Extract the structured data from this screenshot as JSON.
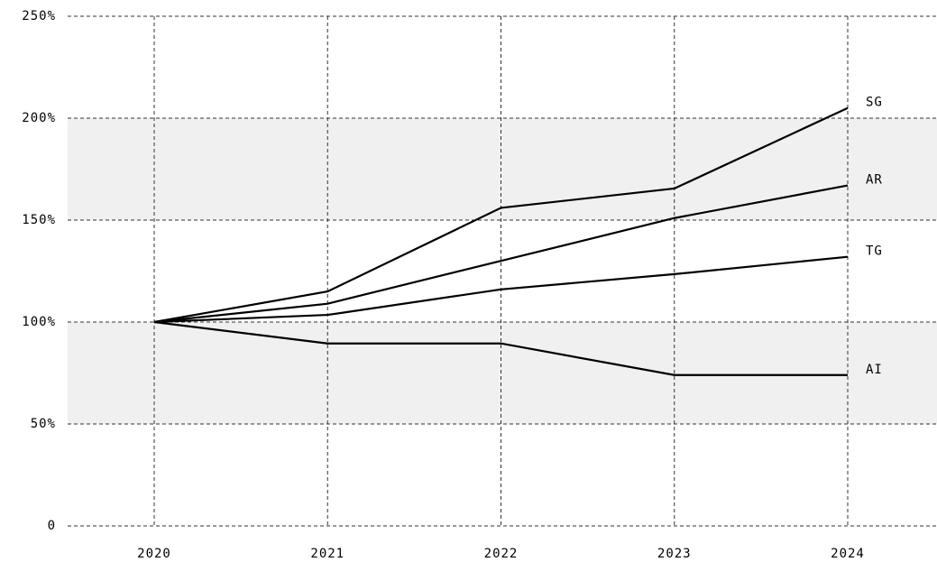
{
  "chart_data": {
    "type": "line",
    "categories": [
      "2020",
      "2021",
      "2022",
      "2023",
      "2024"
    ],
    "series": [
      {
        "name": "SG",
        "color": "#000000",
        "values": [
          100,
          115,
          156,
          165.5,
          205
        ]
      },
      {
        "name": "AR",
        "color": "#000000",
        "values": [
          100,
          109,
          130,
          151,
          167
        ]
      },
      {
        "name": "TG",
        "color": "#000000",
        "values": [
          100,
          103.5,
          116,
          123.5,
          132
        ]
      },
      {
        "name": "AI",
        "color": "#000000",
        "values": [
          100,
          89.5,
          89.5,
          74,
          74
        ]
      }
    ],
    "ylim": [
      0,
      250
    ],
    "yticks": [
      0,
      {
        "value": 50,
        "label": "50%"
      },
      {
        "value": 100,
        "label": "100%"
      },
      {
        "value": 150,
        "label": "150%"
      },
      {
        "value": 200,
        "label": "200%"
      },
      {
        "value": 250,
        "label": "250%"
      }
    ],
    "grid": true,
    "alternate_bands": true
  }
}
